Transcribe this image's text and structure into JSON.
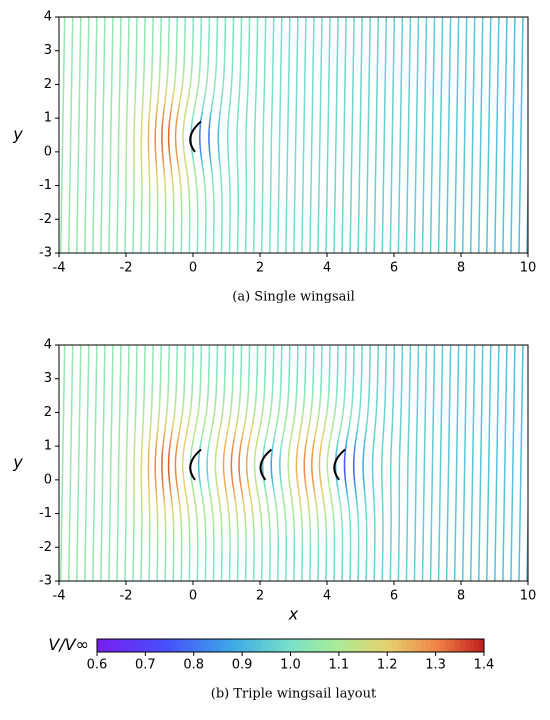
{
  "chart_data": [
    {
      "type": "streamplot",
      "caption": "(a) Single wingsail",
      "ylabel": "y",
      "xlim": [
        -4,
        10
      ],
      "ylim": [
        -3,
        4
      ],
      "xticks": [
        -4,
        -2,
        0,
        2,
        4,
        6,
        8,
        10
      ],
      "yticks": [
        -3,
        -2,
        -1,
        0,
        1,
        2,
        3,
        4
      ],
      "sails_x": [
        0
      ]
    },
    {
      "type": "streamplot",
      "caption": "(b) Triple wingsail layout",
      "xlabel": "x",
      "ylabel": "y",
      "xlim": [
        -4,
        10
      ],
      "ylim": [
        -3,
        4
      ],
      "xticks": [
        -4,
        -2,
        0,
        2,
        4,
        6,
        8,
        10
      ],
      "yticks": [
        -3,
        -2,
        -1,
        0,
        1,
        2,
        3,
        4
      ],
      "sails_x": [
        0,
        2.1,
        4.3
      ]
    }
  ],
  "colorbar": {
    "label": "V/V∞",
    "lim": [
      0.6,
      1.4
    ],
    "ticks": [
      0.6,
      0.7,
      0.8,
      0.9,
      {
        "value": 1.0,
        "label": "1.0"
      },
      1.1,
      1.2,
      1.3,
      1.4
    ]
  }
}
